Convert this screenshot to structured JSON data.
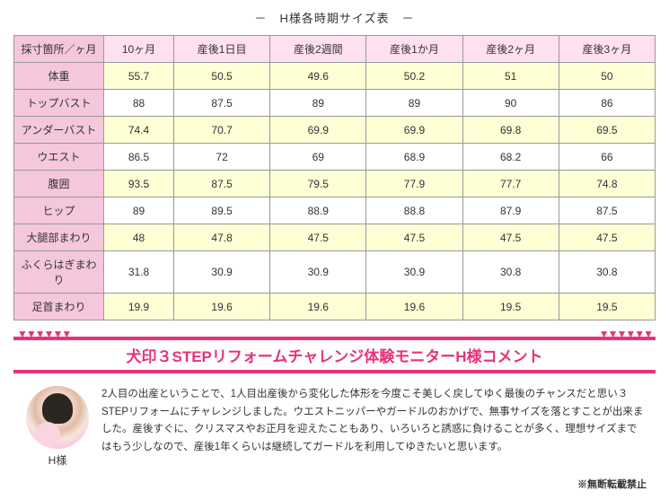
{
  "title": "－　H様各時期サイズ表　－",
  "table": {
    "corner": "採寸箇所／ヶ月",
    "columns": [
      "10ヶ月",
      "産後1日目",
      "産後2週間",
      "産後1か月",
      "産後2ヶ月",
      "産後3ヶ月"
    ],
    "rows": [
      {
        "label": "体重",
        "highlight": true,
        "cells": [
          "55.7",
          "50.5",
          "49.6",
          "50.2",
          "51",
          "50"
        ]
      },
      {
        "label": "トップバスト",
        "highlight": false,
        "cells": [
          "88",
          "87.5",
          "89",
          "89",
          "90",
          "86"
        ]
      },
      {
        "label": "アンダーバスト",
        "highlight": true,
        "cells": [
          "74.4",
          "70.7",
          "69.9",
          "69.9",
          "69.8",
          "69.5"
        ]
      },
      {
        "label": "ウエスト",
        "highlight": false,
        "cells": [
          "86.5",
          "72",
          "69",
          "68.9",
          "68.2",
          "66"
        ]
      },
      {
        "label": "腹囲",
        "highlight": true,
        "cells": [
          "93.5",
          "87.5",
          "79.5",
          "77.9",
          "77.7",
          "74.8"
        ]
      },
      {
        "label": "ヒップ",
        "highlight": false,
        "cells": [
          "89",
          "89.5",
          "88.9",
          "88.8",
          "87.9",
          "87.5"
        ]
      },
      {
        "label": "大腿部まわり",
        "highlight": true,
        "cells": [
          "48",
          "47.8",
          "47.5",
          "47.5",
          "47.5",
          "47.5"
        ]
      },
      {
        "label": "ふくらはぎまわり",
        "highlight": false,
        "cells": [
          "31.8",
          "30.9",
          "30.9",
          "30.9",
          "30.8",
          "30.8"
        ]
      },
      {
        "label": "足首まわり",
        "highlight": true,
        "cells": [
          "19.9",
          "19.6",
          "19.6",
          "19.6",
          "19.5",
          "19.5"
        ]
      }
    ]
  },
  "banner": {
    "deco": "▼▼▼▼▼▼",
    "text": "犬印３STEPリフォームチャレンジ体験モニターH様コメント"
  },
  "profile": {
    "name": "H様"
  },
  "comment": "2人目の出産ということで、1人目出産後から変化した体形を今度こそ美しく戻してゆく最後のチャンスだと思い３STEPリフォームにチャレンジしました。ウエストニッパーやガードルのおかげで、無事サイズを落とすことが出来ました。産後すぐに、クリスマスやお正月を迎えたこともあり、いろいろと誘惑に負けることが多く、理想サイズまではもう少しなので、産後1年くらいは継続してガードルを利用してゆきたいと思います。",
  "footer": "※無断転載禁止",
  "colors": {
    "header_bg": "#ffe0ef",
    "row_label_bg": "#f5c7dd",
    "highlight_bg": "#ffffd6",
    "accent": "#e6337a",
    "border": "#999999"
  }
}
